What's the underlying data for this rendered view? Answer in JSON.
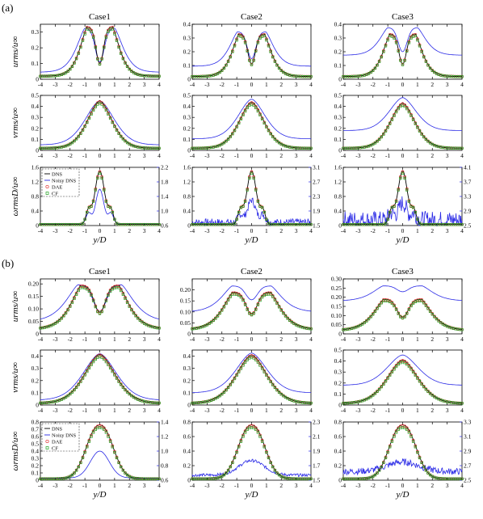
{
  "panels": [
    {
      "label": "(a)"
    },
    {
      "label": "(b)"
    }
  ],
  "columns": [
    "Case1",
    "Case2",
    "Case3"
  ],
  "row_labels": [
    "urms/u∞",
    "vrms/u∞",
    "ωrmsD/u∞"
  ],
  "xlabel": "y/D",
  "legend": [
    "DNS",
    "Noisy DNS",
    "DAE",
    "CF"
  ],
  "colors": {
    "dns": "#000000",
    "noisy": "#2a2ae6",
    "dae": "#e03030",
    "cf": "#20a020",
    "right_axis": "#2a2ae6"
  },
  "chart_data": [
    {
      "panel": "(a)",
      "type": "line",
      "x_ticks": [
        -4,
        -3,
        -2,
        -1,
        0,
        1,
        2,
        3,
        4
      ],
      "xlim": [
        -4,
        4
      ],
      "grid": false,
      "legend_position": "top-left of bottom-left subplot",
      "rows": [
        {
          "ylabel": "urms/u∞",
          "subplots": [
            {
              "case": "Case1",
              "ylim": [
                0,
                0.35
              ],
              "y_ticks": [
                "0",
                "0.1",
                "0.2",
                "0.3"
              ],
              "y_tick_values": [
                0,
                0.1,
                0.2,
                0.3
              ],
              "shape": {
                "kind": "double",
                "peak": 0.335,
                "center": 0.1,
                "tail": 0.02,
                "width": 0.85
              },
              "noisy": {
                "kind": "double",
                "peak": 0.325,
                "center": 0.11,
                "tail": 0.045,
                "width": 1.0
              }
            },
            {
              "case": "Case2",
              "ylim": [
                0,
                0.4
              ],
              "y_ticks": [
                "0",
                "0.1",
                "0.2",
                "0.3",
                "0.4"
              ],
              "y_tick_values": [
                0,
                0.1,
                0.2,
                0.3,
                0.4
              ],
              "shape": {
                "kind": "double",
                "peak": 0.33,
                "center": 0.11,
                "tail": 0.02,
                "width": 0.85
              },
              "noisy": {
                "kind": "double",
                "peak": 0.345,
                "center": 0.15,
                "tail": 0.095,
                "width": 0.95
              }
            },
            {
              "case": "Case3",
              "ylim": [
                0,
                0.4
              ],
              "y_ticks": [
                "0",
                "0.1",
                "0.2",
                "0.3",
                "0.4"
              ],
              "y_tick_values": [
                0,
                0.1,
                0.2,
                0.3,
                0.4
              ],
              "shape": {
                "kind": "double",
                "peak": 0.33,
                "center": 0.11,
                "tail": 0.02,
                "width": 0.85
              },
              "noisy": {
                "kind": "double",
                "peak": 0.375,
                "center": 0.2,
                "tail": 0.175,
                "width": 1.0
              }
            }
          ]
        },
        {
          "ylabel": "vrms/u∞",
          "subplots": [
            {
              "case": "Case1",
              "ylim": [
                0,
                0.5
              ],
              "y_ticks": [
                "0",
                "0.1",
                "0.2",
                "0.3",
                "0.4",
                "0.5"
              ],
              "y_tick_values": [
                0,
                0.1,
                0.2,
                0.3,
                0.4,
                0.5
              ],
              "shape": {
                "kind": "single",
                "peak": 0.45,
                "tail": 0.02,
                "width": 1.2
              },
              "noisy": {
                "kind": "single",
                "peak": 0.45,
                "tail": 0.05,
                "width": 1.4
              }
            },
            {
              "case": "Case2",
              "ylim": [
                0,
                0.5
              ],
              "y_ticks": [
                "0",
                "0.1",
                "0.2",
                "0.3",
                "0.4",
                "0.5"
              ],
              "y_tick_values": [
                0,
                0.1,
                0.2,
                0.3,
                0.4,
                0.5
              ],
              "shape": {
                "kind": "single",
                "peak": 0.44,
                "tail": 0.02,
                "width": 1.2
              },
              "noisy": {
                "kind": "single",
                "peak": 0.465,
                "tail": 0.105,
                "width": 1.3
              }
            },
            {
              "case": "Case3",
              "ylim": [
                0,
                0.5
              ],
              "y_ticks": [
                "0",
                "0.1",
                "0.2",
                "0.3",
                "0.4",
                "0.5"
              ],
              "y_tick_values": [
                0,
                0.1,
                0.2,
                0.3,
                0.4,
                0.5
              ],
              "shape": {
                "kind": "single",
                "peak": 0.43,
                "tail": 0.02,
                "width": 1.2
              },
              "noisy": {
                "kind": "single",
                "peak": 0.48,
                "tail": 0.18,
                "width": 1.3
              }
            }
          ]
        },
        {
          "ylabel": "ωrmsD/u∞",
          "subplots": [
            {
              "case": "Case1",
              "ylim": [
                0,
                1.6
              ],
              "y_ticks": [
                "0",
                "0.4",
                "0.8",
                "1.2",
                "1.6"
              ],
              "y_tick_values": [
                0,
                0.4,
                0.8,
                1.2,
                1.6
              ],
              "right_ylim": [
                0.6,
                2.2
              ],
              "right_ticks": [
                "0.6",
                "1.0",
                "1.4",
                "1.8",
                "2.2"
              ],
              "shape": {
                "kind": "omega",
                "peak": 1.5,
                "tail": 0.03
              },
              "noisy": {
                "kind": "omega_noisy",
                "peak": 1.0,
                "tail": 0.04,
                "noise": 0
              }
            },
            {
              "case": "Case2",
              "ylim": [
                0,
                1.6
              ],
              "y_ticks": [
                "0",
                "0.4",
                "0.8",
                "1.2",
                "1.6"
              ],
              "y_tick_values": [
                0,
                0.4,
                0.8,
                1.2,
                1.6
              ],
              "right_ylim": [
                1.5,
                3.1
              ],
              "right_ticks": [
                "1.5",
                "1.9",
                "2.3",
                "2.7",
                "3.1"
              ],
              "shape": {
                "kind": "omega",
                "peak": 1.5,
                "tail": 0.03
              },
              "noisy": {
                "kind": "omega_noisy",
                "peak": 0.7,
                "tail": 0.09,
                "noise": 0.05
              }
            },
            {
              "case": "Case3",
              "ylim": [
                0,
                1.6
              ],
              "y_ticks": [
                "0",
                "0.4",
                "0.8",
                "1.2",
                "1.6"
              ],
              "y_tick_values": [
                0,
                0.4,
                0.8,
                1.2,
                1.6
              ],
              "right_ylim": [
                2.5,
                4.1
              ],
              "right_ticks": [
                "2.5",
                "2.9",
                "3.3",
                "3.7",
                "4.1"
              ],
              "shape": {
                "kind": "omega",
                "peak": 1.5,
                "tail": 0.03
              },
              "noisy": {
                "kind": "omega_noisy",
                "peak": 0.62,
                "tail": 0.16,
                "noise": 0.12
              }
            }
          ]
        }
      ]
    },
    {
      "panel": "(b)",
      "type": "line",
      "x_ticks": [
        -4,
        -3,
        -2,
        -1,
        0,
        1,
        2,
        3,
        4
      ],
      "xlim": [
        -4,
        4
      ],
      "grid": false,
      "legend_position": "top-left of bottom-left subplot",
      "rows": [
        {
          "ylabel": "urms/u∞",
          "subplots": [
            {
              "case": "Case1",
              "ylim": [
                0,
                0.22
              ],
              "y_ticks": [
                "0",
                "0.05",
                "0.10",
                "0.15",
                "0.20"
              ],
              "y_tick_values": [
                0,
                0.05,
                0.1,
                0.15,
                0.2
              ],
              "shape": {
                "kind": "double",
                "peak": 0.195,
                "center": 0.085,
                "tail": 0.02,
                "width": 1.25
              },
              "noisy": {
                "kind": "double",
                "peak": 0.197,
                "center": 0.09,
                "tail": 0.05,
                "width": 1.45
              }
            },
            {
              "case": "Case2",
              "ylim": [
                0,
                0.25
              ],
              "y_ticks": [
                "0",
                "0.05",
                "0.10",
                "0.15",
                "0.20"
              ],
              "y_tick_values": [
                0,
                0.05,
                0.1,
                0.15,
                0.2
              ],
              "shape": {
                "kind": "double",
                "peak": 0.19,
                "center": 0.09,
                "tail": 0.02,
                "width": 1.25
              },
              "noisy": {
                "kind": "double",
                "peak": 0.218,
                "center": 0.155,
                "tail": 0.1,
                "width": 1.3
              }
            },
            {
              "case": "Case3",
              "ylim": [
                0,
                0.3
              ],
              "y_ticks": [
                "0",
                "0.05",
                "0.10",
                "0.15",
                "0.20",
                "0.25",
                "0.30"
              ],
              "y_tick_values": [
                0,
                0.05,
                0.1,
                0.15,
                0.2,
                0.25,
                0.3
              ],
              "shape": {
                "kind": "double",
                "peak": 0.19,
                "center": 0.09,
                "tail": 0.02,
                "width": 1.25
              },
              "noisy": {
                "kind": "double",
                "peak": 0.262,
                "center": 0.23,
                "tail": 0.18,
                "width": 1.3
              }
            }
          ]
        },
        {
          "ylabel": "vrms/u∞",
          "subplots": [
            {
              "case": "Case1",
              "ylim": [
                0,
                0.45
              ],
              "y_ticks": [
                "0",
                "0.1",
                "0.2",
                "0.3",
                "0.4"
              ],
              "y_tick_values": [
                0,
                0.1,
                0.2,
                0.3,
                0.4
              ],
              "shape": {
                "kind": "single",
                "peak": 0.415,
                "tail": 0.015,
                "width": 1.5
              },
              "noisy": {
                "kind": "single",
                "peak": 0.42,
                "tail": 0.04,
                "width": 1.6
              }
            },
            {
              "case": "Case2",
              "ylim": [
                0,
                0.45
              ],
              "y_ticks": [
                "0",
                "0.1",
                "0.2",
                "0.3",
                "0.4"
              ],
              "y_tick_values": [
                0,
                0.1,
                0.2,
                0.3,
                0.4
              ],
              "shape": {
                "kind": "single",
                "peak": 0.41,
                "tail": 0.015,
                "width": 1.5
              },
              "noisy": {
                "kind": "single",
                "peak": 0.425,
                "tail": 0.1,
                "width": 1.5
              }
            },
            {
              "case": "Case3",
              "ylim": [
                0,
                0.5
              ],
              "y_ticks": [
                "0",
                "0.1",
                "0.2",
                "0.3",
                "0.4",
                "0.5"
              ],
              "y_tick_values": [
                0,
                0.1,
                0.2,
                0.3,
                0.4,
                0.5
              ],
              "shape": {
                "kind": "single",
                "peak": 0.41,
                "tail": 0.015,
                "width": 1.5
              },
              "noisy": {
                "kind": "single",
                "peak": 0.455,
                "tail": 0.18,
                "width": 1.5
              }
            }
          ]
        },
        {
          "ylabel": "ωrmsD/u∞",
          "subplots": [
            {
              "case": "Case1",
              "ylim": [
                0,
                0.8
              ],
              "y_ticks": [
                "0",
                "0.1",
                "0.2",
                "0.3",
                "0.4",
                "0.5",
                "0.6",
                "0.7",
                "0.8"
              ],
              "y_tick_values": [
                0,
                0.1,
                0.2,
                0.3,
                0.4,
                0.5,
                0.6,
                0.7,
                0.8
              ],
              "right_ylim": [
                0.6,
                1.4
              ],
              "right_ticks": [
                "0.6",
                "0.8",
                "1.0",
                "1.2",
                "1.4"
              ],
              "shape": {
                "kind": "bell",
                "peak": 0.76,
                "tail": 0.02,
                "width": 1.2
              },
              "noisy": {
                "kind": "bell_noisy",
                "peak": 0.4,
                "tail": 0.03,
                "width": 0.9,
                "noise": 0
              }
            },
            {
              "case": "Case2",
              "ylim": [
                0,
                0.8
              ],
              "y_ticks": [
                "0",
                "0.2",
                "0.4",
                "0.6",
                "0.8"
              ],
              "y_tick_values": [
                0,
                0.2,
                0.4,
                0.6,
                0.8
              ],
              "right_ylim": [
                1.5,
                2.3
              ],
              "right_ticks": [
                "1.5",
                "1.7",
                "1.9",
                "2.1",
                "2.3"
              ],
              "shape": {
                "kind": "bell",
                "peak": 0.76,
                "tail": 0.02,
                "width": 1.2
              },
              "noisy": {
                "kind": "bell_noisy",
                "peak": 0.27,
                "tail": 0.07,
                "width": 1.2,
                "noise": 0.04
              }
            },
            {
              "case": "Case3",
              "ylim": [
                0,
                0.8
              ],
              "y_ticks": [
                "0",
                "0.2",
                "0.4",
                "0.6",
                "0.8"
              ],
              "y_tick_values": [
                0,
                0.2,
                0.4,
                0.6,
                0.8
              ],
              "right_ylim": [
                2.5,
                3.3
              ],
              "right_ticks": [
                "2.5",
                "2.7",
                "2.9",
                "3.1",
                "3.3"
              ],
              "shape": {
                "kind": "bell",
                "peak": 0.76,
                "tail": 0.02,
                "width": 1.2
              },
              "noisy": {
                "kind": "bell_noisy",
                "peak": 0.25,
                "tail": 0.12,
                "width": 1.5,
                "noise": 0.09
              }
            }
          ]
        }
      ]
    }
  ]
}
